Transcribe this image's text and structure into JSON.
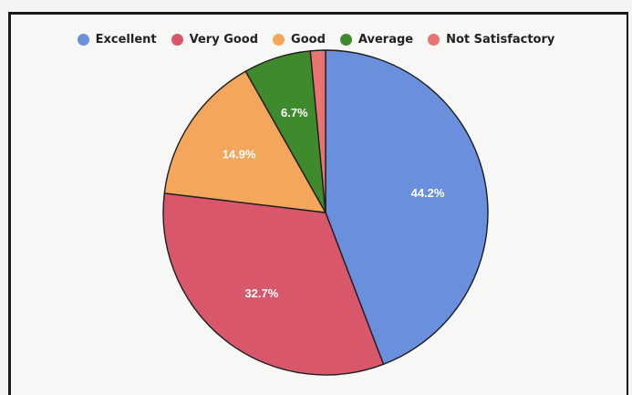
{
  "chart_data": {
    "type": "pie",
    "title": "",
    "legend_position": "top",
    "categories": [
      "Excellent",
      "Very Good",
      "Good",
      "Average",
      "Not Satisfactory"
    ],
    "values": [
      44.2,
      32.7,
      14.9,
      6.7,
      1.5
    ],
    "labels": [
      "44.2%",
      "32.7%",
      "14.9%",
      "6.7%",
      ""
    ],
    "colors": [
      "#6a8fdc",
      "#d9576a",
      "#f3a65c",
      "#3f8a2c",
      "#e77373"
    ],
    "start_angle_deg": 0,
    "direction": "clockwise"
  }
}
